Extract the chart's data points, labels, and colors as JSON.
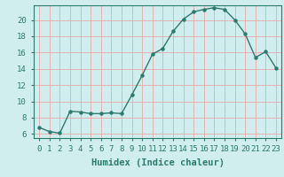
{
  "x": [
    0,
    1,
    2,
    3,
    4,
    5,
    6,
    7,
    8,
    9,
    10,
    11,
    12,
    13,
    14,
    15,
    16,
    17,
    18,
    19,
    20,
    21,
    22,
    23
  ],
  "y": [
    6.8,
    6.3,
    6.1,
    8.8,
    8.7,
    8.5,
    8.5,
    8.6,
    8.5,
    10.8,
    13.2,
    15.8,
    16.5,
    18.6,
    20.1,
    21.0,
    21.3,
    21.5,
    21.3,
    20.0,
    18.3,
    15.4,
    16.1,
    14.1
  ],
  "line_color": "#2d7a6e",
  "marker_color": "#2d7a6e",
  "bg_color": "#d0eeee",
  "grid_color_major": "#e8a8a8",
  "xlabel": "Humidex (Indice chaleur)",
  "xlim": [
    -0.5,
    23.5
  ],
  "ylim": [
    5.5,
    21.8
  ],
  "yticks": [
    6,
    8,
    10,
    12,
    14,
    16,
    18,
    20
  ],
  "xticks": [
    0,
    1,
    2,
    3,
    4,
    5,
    6,
    7,
    8,
    9,
    10,
    11,
    12,
    13,
    14,
    15,
    16,
    17,
    18,
    19,
    20,
    21,
    22,
    23
  ],
  "label_fontsize": 7.5,
  "tick_fontsize": 6.5
}
